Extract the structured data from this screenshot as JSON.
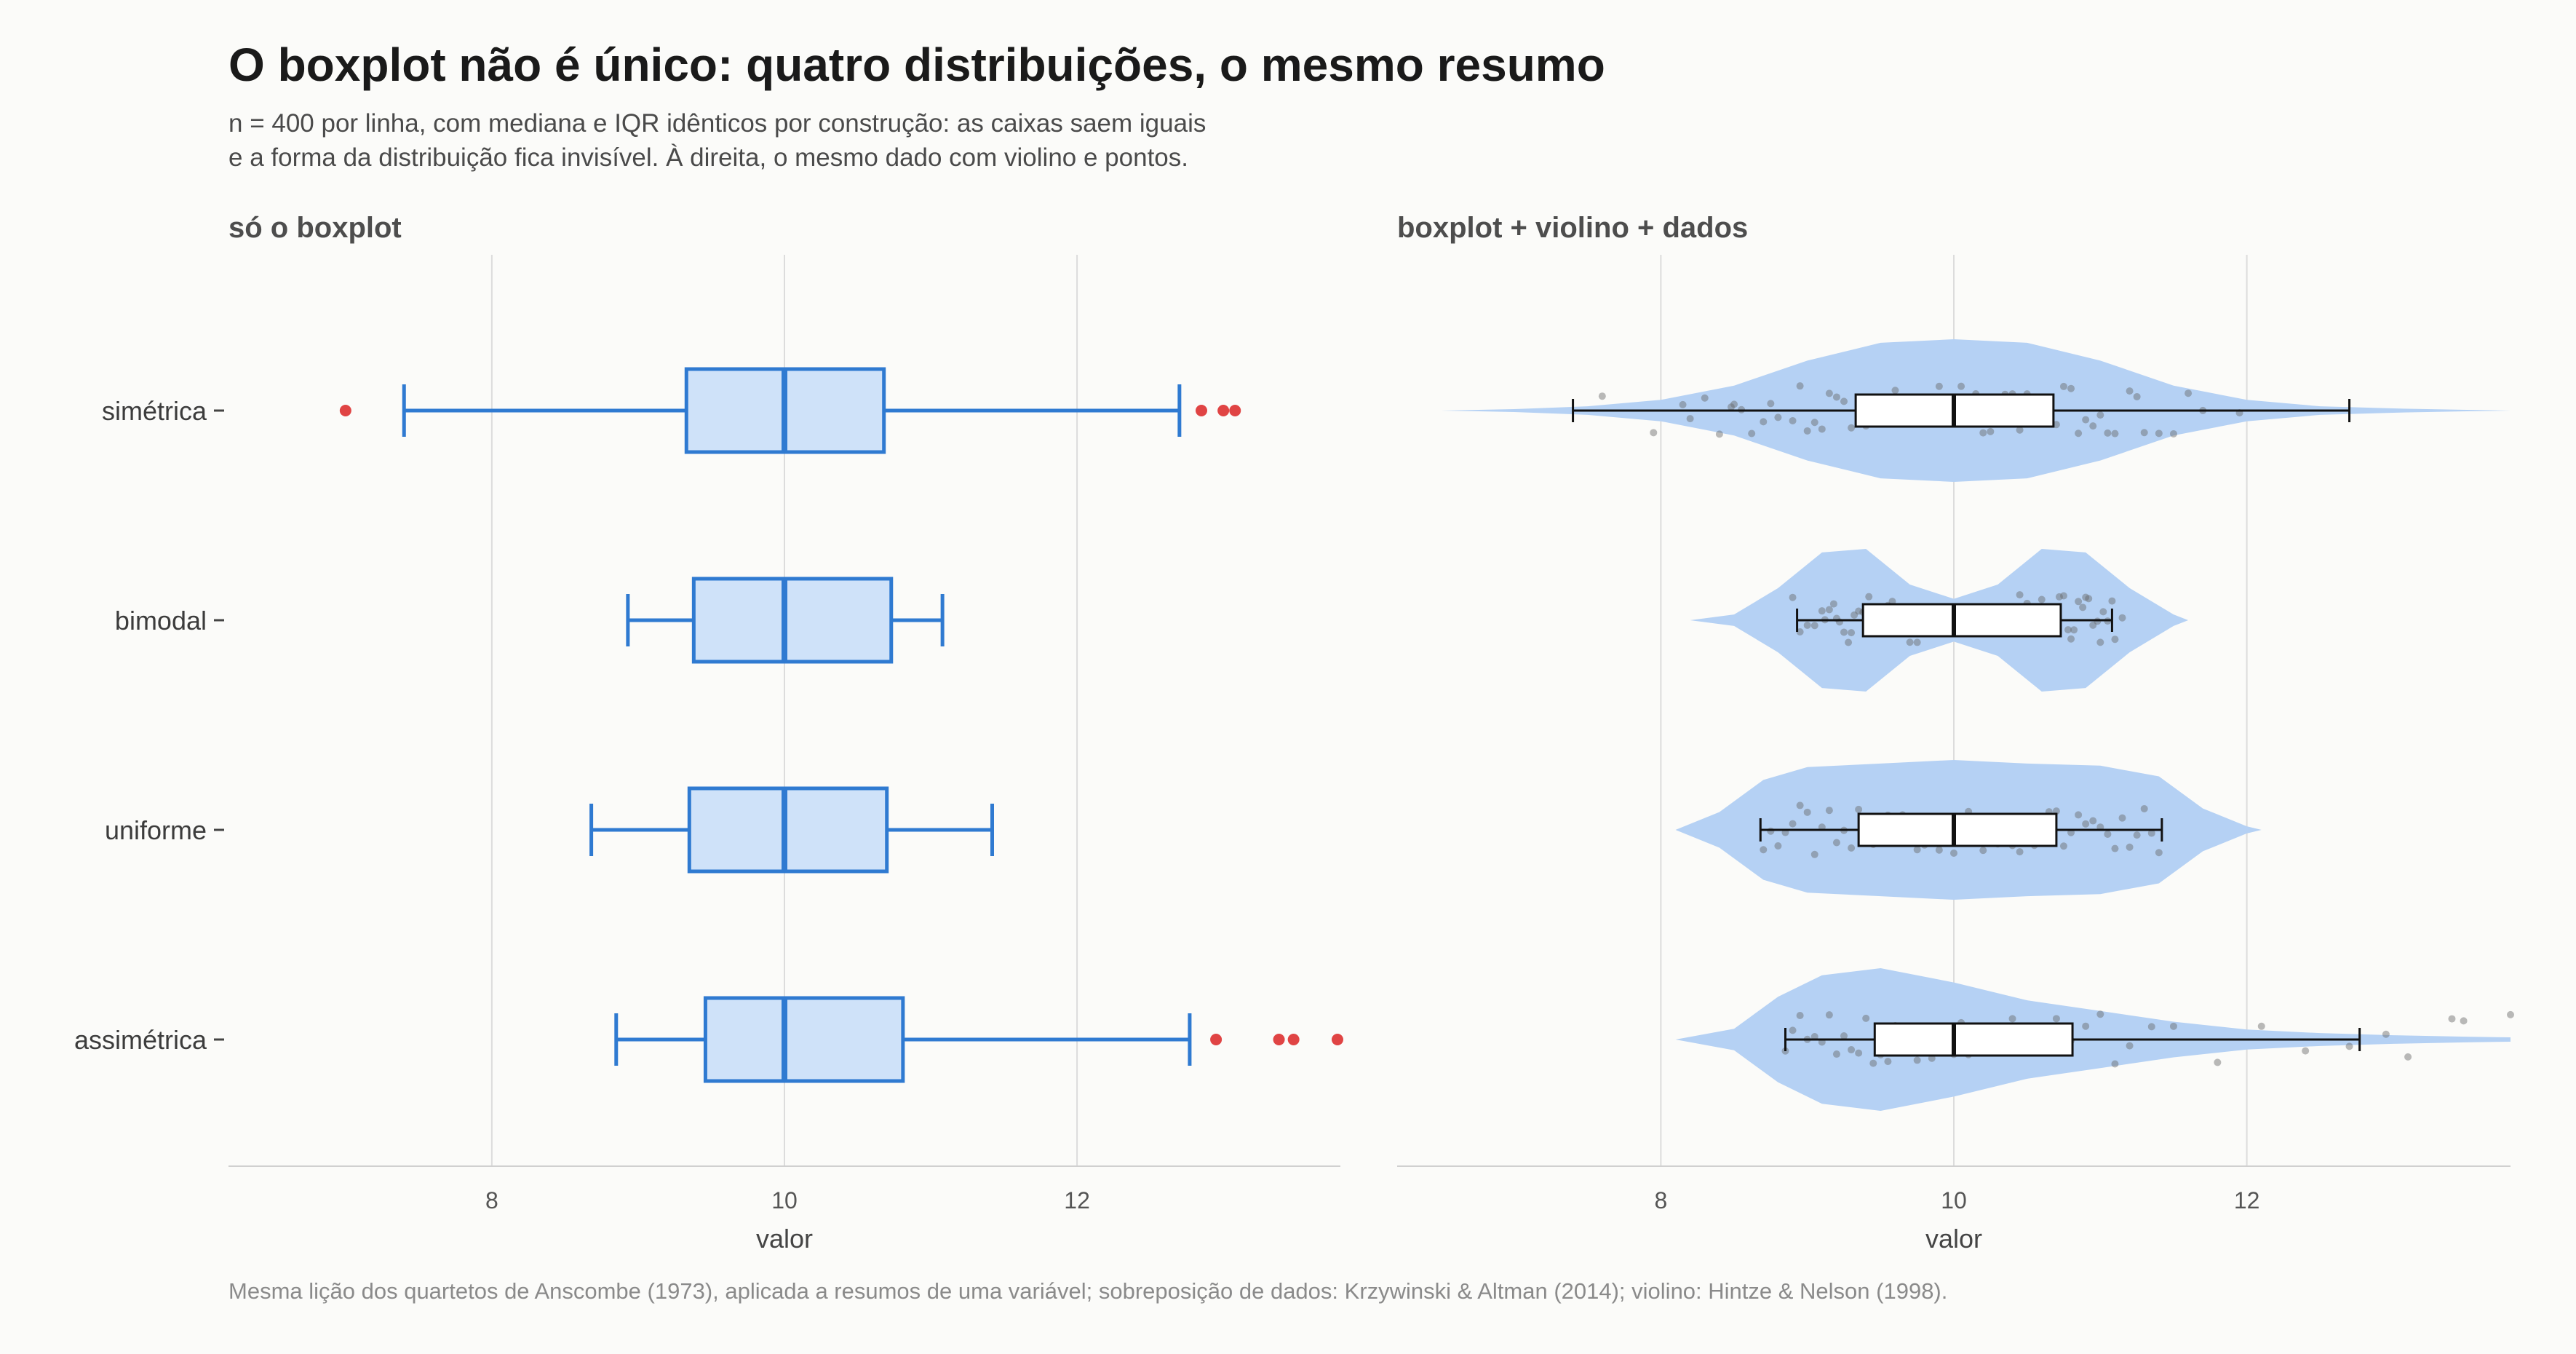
{
  "title": "O boxplot não é único: quatro distribuições, o mesmo resumo",
  "subtitle": "n = 400 por linha, com mediana e IQR idênticos por construção: as caixas saem iguais\n e a forma da distribuição fica invisível. À direita, o mesmo dado com violino e pontos.",
  "caption": "Mesma lição dos quartetos de Anscombe (1973), aplicada a resumos de uma variável; sobreposição de dados: Krzywinski & Altman (2014); violino: Hintze & Nelson (1998).",
  "colors": {
    "box_stroke": "#2f7ad1",
    "box_fill": "#cfe2f9",
    "outlier": "#e04444",
    "violin_fill": "#b5d1f4",
    "points": "#666666",
    "grid": "#dcdcdc",
    "background": "#fbfbf9"
  },
  "chart_data": [
    {
      "type": "boxplot",
      "title": "só o boxplot",
      "xlabel": "valor",
      "xlim": [
        6.2,
        13.8
      ],
      "xticks": [
        8,
        10,
        12
      ],
      "categories": [
        "simétrica",
        "bimodal",
        "uniforme",
        "assimétrica"
      ],
      "boxes": [
        {
          "name": "simétrica",
          "whisker_low": 7.4,
          "q1": 9.33,
          "median": 10.0,
          "q3": 10.68,
          "whisker_high": 12.7,
          "outliers": [
            7.0,
            12.85,
            13.0,
            13.08
          ]
        },
        {
          "name": "bimodal",
          "whisker_low": 8.93,
          "q1": 9.38,
          "median": 10.0,
          "q3": 10.73,
          "whisker_high": 11.08
        },
        {
          "name": "uniforme",
          "whisker_low": 8.68,
          "q1": 9.35,
          "median": 10.0,
          "q3": 10.7,
          "whisker_high": 11.42
        },
        {
          "name": "assimétrica",
          "whisker_low": 8.85,
          "q1": 9.46,
          "median": 10.0,
          "q3": 10.81,
          "whisker_high": 12.77,
          "outliers": [
            12.95,
            13.38,
            13.48,
            13.78
          ]
        }
      ]
    },
    {
      "type": "boxplot+violin+points",
      "title": "boxplot + violino + dados",
      "xlabel": "valor",
      "xlim": [
        6.2,
        13.8
      ],
      "xticks": [
        8,
        10,
        12
      ],
      "categories": [
        "simétrica",
        "bimodal",
        "uniforme",
        "assimétrica"
      ],
      "boxes": [
        {
          "name": "simétrica",
          "whisker_low": 7.4,
          "q1": 9.33,
          "median": 10.0,
          "q3": 10.68,
          "whisker_high": 12.7
        },
        {
          "name": "bimodal",
          "whisker_low": 8.93,
          "q1": 9.38,
          "median": 10.0,
          "q3": 10.73,
          "whisker_high": 11.08
        },
        {
          "name": "uniforme",
          "whisker_low": 8.68,
          "q1": 9.35,
          "median": 10.0,
          "q3": 10.7,
          "whisker_high": 11.42
        },
        {
          "name": "assimétrica",
          "whisker_low": 8.85,
          "q1": 9.46,
          "median": 10.0,
          "q3": 10.81,
          "whisker_high": 12.77
        }
      ],
      "violins": [
        {
          "name": "simétrica",
          "x": [
            6.5,
            7.0,
            7.5,
            8.0,
            8.5,
            9.0,
            9.5,
            10.0,
            10.5,
            11.0,
            11.5,
            12.0,
            12.5,
            13.0,
            13.5,
            13.8
          ],
          "density": [
            0.0,
            0.02,
            0.06,
            0.15,
            0.35,
            0.7,
            0.95,
            1.0,
            0.95,
            0.7,
            0.35,
            0.15,
            0.06,
            0.03,
            0.01,
            0.0
          ]
        },
        {
          "name": "bimodal",
          "x": [
            8.2,
            8.5,
            8.8,
            9.1,
            9.4,
            9.7,
            10.0,
            10.3,
            10.6,
            10.9,
            11.2,
            11.5,
            11.6
          ],
          "density": [
            0.0,
            0.08,
            0.45,
            0.95,
            1.0,
            0.5,
            0.3,
            0.5,
            1.0,
            0.95,
            0.45,
            0.08,
            0.0
          ]
        },
        {
          "name": "uniforme",
          "x": [
            8.1,
            8.4,
            8.7,
            9.0,
            9.5,
            10.0,
            10.5,
            11.0,
            11.4,
            11.7,
            12.0,
            12.1
          ],
          "density": [
            0.0,
            0.25,
            0.7,
            0.88,
            0.93,
            0.98,
            0.93,
            0.9,
            0.75,
            0.3,
            0.05,
            0.0
          ]
        },
        {
          "name": "assimétrica",
          "x": [
            8.1,
            8.5,
            8.8,
            9.1,
            9.5,
            10.0,
            10.5,
            11.0,
            11.5,
            12.0,
            12.5,
            13.0,
            13.5,
            13.8
          ],
          "density": [
            0.0,
            0.15,
            0.6,
            0.9,
            1.0,
            0.8,
            0.55,
            0.4,
            0.25,
            0.14,
            0.09,
            0.06,
            0.04,
            0.03
          ]
        }
      ],
      "points": [
        {
          "name": "simétrica",
          "values": [
            7.6,
            7.95,
            8.15,
            8.2,
            8.3,
            8.4,
            8.48,
            8.5,
            8.55,
            8.62,
            8.7,
            8.75,
            8.8,
            8.9,
            8.95,
            9.0,
            9.05,
            9.1,
            9.15,
            9.2,
            9.25,
            9.3,
            9.35,
            9.4,
            9.45,
            9.5,
            9.55,
            9.6,
            9.65,
            9.7,
            9.75,
            9.8,
            9.85,
            9.9,
            9.95,
            10.0,
            10.05,
            10.1,
            10.15,
            10.2,
            10.25,
            10.3,
            10.35,
            10.4,
            10.45,
            10.5,
            10.55,
            10.6,
            10.65,
            10.7,
            10.75,
            10.8,
            10.85,
            10.9,
            10.95,
            11.0,
            11.05,
            11.1,
            11.2,
            11.25,
            11.3,
            11.4,
            11.5,
            11.6,
            11.7,
            11.95
          ]
        },
        {
          "name": "bimodal",
          "values": [
            8.9,
            8.95,
            9.0,
            9.05,
            9.1,
            9.12,
            9.15,
            9.18,
            9.2,
            9.22,
            9.25,
            9.28,
            9.3,
            9.32,
            9.35,
            9.38,
            9.4,
            9.42,
            9.45,
            9.48,
            9.5,
            9.52,
            9.55,
            9.58,
            9.6,
            9.62,
            9.65,
            9.7,
            9.75,
            9.8,
            10.4,
            10.45,
            10.5,
            10.55,
            10.6,
            10.62,
            10.65,
            10.68,
            10.7,
            10.72,
            10.75,
            10.78,
            10.8,
            10.82,
            10.85,
            10.88,
            10.9,
            10.92,
            10.95,
            10.98,
            11.0,
            11.02,
            11.05,
            11.08,
            11.1,
            11.15
          ]
        },
        {
          "name": "uniforme",
          "values": [
            8.7,
            8.75,
            8.8,
            8.85,
            8.9,
            8.95,
            9.0,
            9.05,
            9.1,
            9.15,
            9.2,
            9.25,
            9.3,
            9.35,
            9.4,
            9.45,
            9.5,
            9.55,
            9.6,
            9.65,
            9.7,
            9.75,
            9.8,
            9.85,
            9.9,
            9.95,
            10.0,
            10.05,
            10.1,
            10.15,
            10.2,
            10.25,
            10.3,
            10.35,
            10.4,
            10.45,
            10.5,
            10.55,
            10.6,
            10.65,
            10.7,
            10.75,
            10.8,
            10.85,
            10.9,
            10.95,
            11.0,
            11.05,
            11.1,
            11.15,
            11.2,
            11.25,
            11.3,
            11.35,
            11.4
          ]
        },
        {
          "name": "assimétrica",
          "values": [
            8.85,
            8.9,
            8.95,
            9.0,
            9.05,
            9.1,
            9.15,
            9.2,
            9.25,
            9.3,
            9.35,
            9.4,
            9.45,
            9.5,
            9.55,
            9.6,
            9.65,
            9.7,
            9.75,
            9.8,
            9.85,
            9.9,
            9.95,
            10.0,
            10.05,
            10.1,
            10.15,
            10.2,
            10.3,
            10.35,
            10.4,
            10.5,
            10.6,
            10.7,
            10.8,
            10.9,
            11.0,
            11.1,
            11.2,
            11.35,
            11.5,
            11.8,
            12.1,
            12.4,
            12.7,
            12.95,
            13.1,
            13.4,
            13.48,
            13.8
          ]
        }
      ]
    }
  ]
}
